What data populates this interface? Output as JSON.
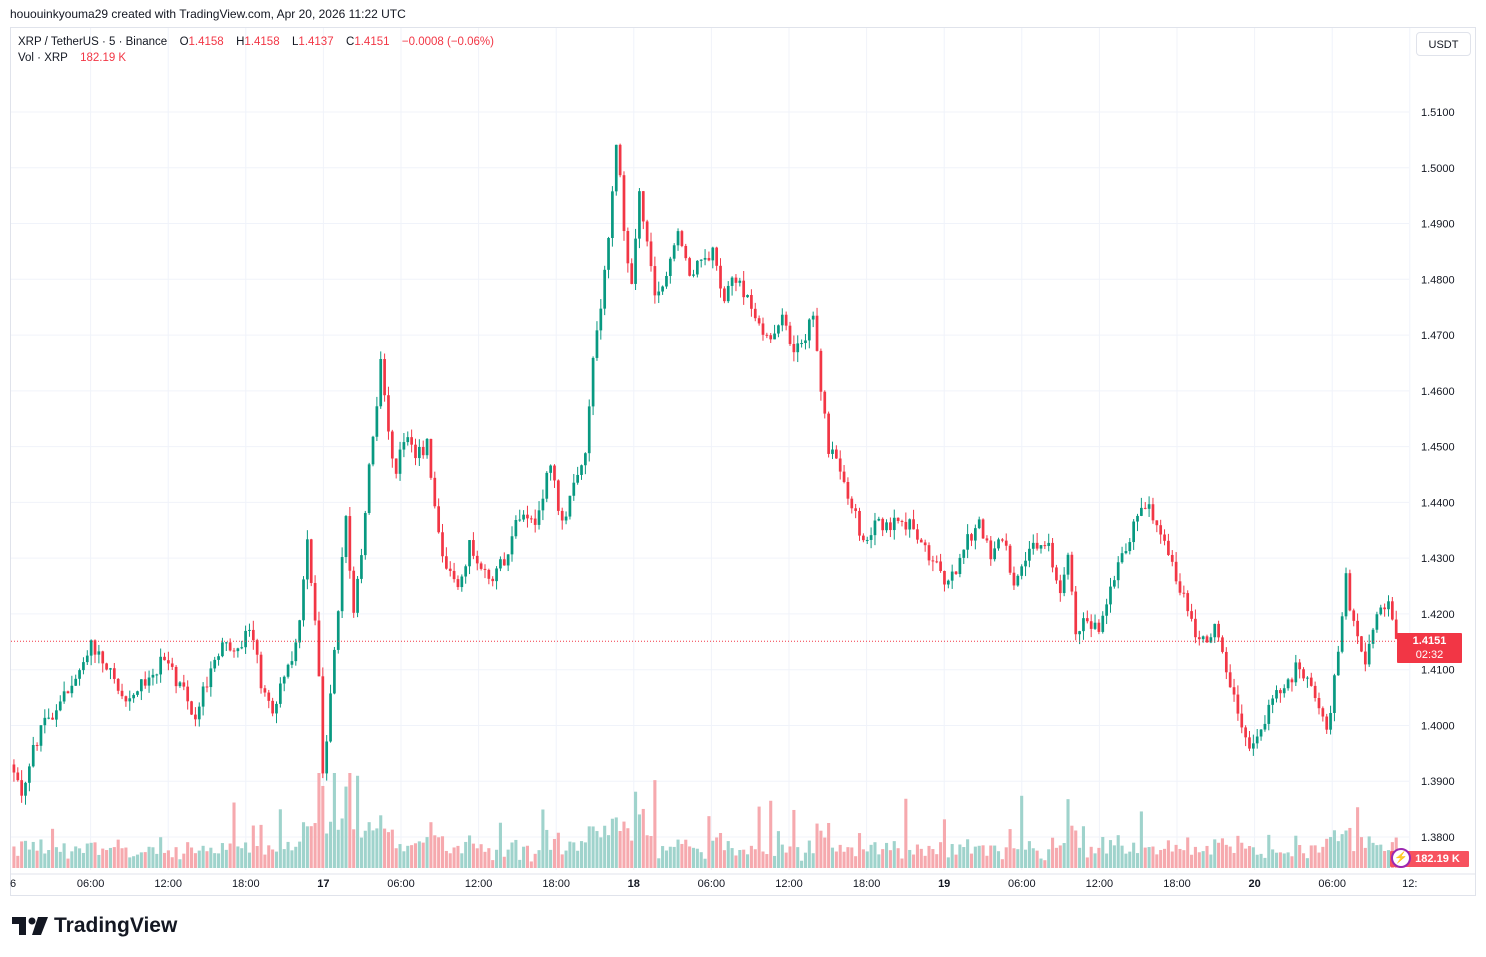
{
  "header": {
    "attribution": "hououinkyouma29 created with TradingView.com, Apr 20, 2026 11:22 UTC"
  },
  "legend": {
    "symbol": "XRP / TetherUS · 5 · Binance",
    "open_label": "O",
    "open": "1.4158",
    "high_label": "H",
    "high": "1.4158",
    "low_label": "L",
    "low": "1.4137",
    "close_label": "C",
    "close": "1.4151",
    "change": "−0.0008 (−0.06%)",
    "vol_label": "Vol · XRP",
    "vol_value": "182.19 K"
  },
  "currency_button": "USDT",
  "price_tag": {
    "price": "1.4151",
    "countdown": "02:32"
  },
  "volume_tag": {
    "value": "182.19 K",
    "icon": "lightning-icon"
  },
  "footer": {
    "brand": "TradingView",
    "logo": "tradingview-logo"
  },
  "colors": {
    "up": "#089981",
    "down": "#f23645",
    "vol_up": "#9fd3cc",
    "vol_down": "#f6a9ae",
    "grid": "#f0f3fa",
    "price_line": "#f23645"
  },
  "chart_data": {
    "type": "candlestick",
    "symbol": "XRP / TetherUS",
    "interval": "5",
    "exchange": "Binance",
    "y_axis": {
      "ticks": [
        "1.5100",
        "1.5000",
        "1.4900",
        "1.4800",
        "1.4700",
        "1.4600",
        "1.4500",
        "1.4400",
        "1.4300",
        "1.4200",
        "1.4100",
        "1.4000",
        "1.3900",
        "1.3800"
      ],
      "range": [
        1.366,
        1.521
      ]
    },
    "x_axis": {
      "ticks": [
        "6",
        "06:00",
        "12:00",
        "18:00",
        "17",
        "06:00",
        "12:00",
        "18:00",
        "18",
        "06:00",
        "12:00",
        "18:00",
        "19",
        "06:00",
        "12:00",
        "18:00",
        "20",
        "06:00",
        "12:"
      ],
      "bold_ticks": [
        "17",
        "18",
        "19",
        "20"
      ]
    },
    "last_price": 1.4151,
    "price_path": [
      [
        0,
        1.393
      ],
      [
        3,
        1.388
      ],
      [
        8,
        1.4
      ],
      [
        13,
        1.404
      ],
      [
        18,
        1.409
      ],
      [
        21,
        1.415
      ],
      [
        25,
        1.41
      ],
      [
        30,
        1.405
      ],
      [
        35,
        1.408
      ],
      [
        40,
        1.412
      ],
      [
        45,
        1.406
      ],
      [
        48,
        1.402
      ],
      [
        52,
        1.41
      ],
      [
        55,
        1.415
      ],
      [
        58,
        1.412
      ],
      [
        62,
        1.418
      ],
      [
        65,
        1.408
      ],
      [
        68,
        1.403
      ],
      [
        72,
        1.41
      ],
      [
        75,
        1.418
      ],
      [
        77,
        1.433
      ],
      [
        79,
        1.42
      ],
      [
        80,
        1.408
      ],
      [
        81,
        1.392
      ],
      [
        83,
        1.405
      ],
      [
        85,
        1.42
      ],
      [
        87,
        1.438
      ],
      [
        89,
        1.42
      ],
      [
        91,
        1.43
      ],
      [
        93,
        1.447
      ],
      [
        95,
        1.458
      ],
      [
        96,
        1.465
      ],
      [
        98,
        1.452
      ],
      [
        100,
        1.445
      ],
      [
        102,
        1.452
      ],
      [
        105,
        1.448
      ],
      [
        108,
        1.45
      ],
      [
        110,
        1.438
      ],
      [
        113,
        1.428
      ],
      [
        116,
        1.425
      ],
      [
        119,
        1.432
      ],
      [
        122,
        1.428
      ],
      [
        125,
        1.426
      ],
      [
        128,
        1.43
      ],
      [
        132,
        1.438
      ],
      [
        136,
        1.436
      ],
      [
        140,
        1.447
      ],
      [
        143,
        1.436
      ],
      [
        146,
        1.444
      ],
      [
        149,
        1.45
      ],
      [
        151,
        1.465
      ],
      [
        153,
        1.475
      ],
      [
        155,
        1.488
      ],
      [
        157,
        1.505
      ],
      [
        159,
        1.49
      ],
      [
        161,
        1.478
      ],
      [
        163,
        1.495
      ],
      [
        165,
        1.487
      ],
      [
        167,
        1.476
      ],
      [
        170,
        1.48
      ],
      [
        173,
        1.49
      ],
      [
        176,
        1.481
      ],
      [
        179,
        1.484
      ],
      [
        182,
        1.485
      ],
      [
        185,
        1.477
      ],
      [
        188,
        1.48
      ],
      [
        191,
        1.477
      ],
      [
        194,
        1.472
      ],
      [
        197,
        1.468
      ],
      [
        200,
        1.473
      ],
      [
        203,
        1.468
      ],
      [
        206,
        1.47
      ],
      [
        208,
        1.474
      ],
      [
        210,
        1.46
      ],
      [
        212,
        1.45
      ],
      [
        215,
        1.446
      ],
      [
        218,
        1.44
      ],
      [
        221,
        1.432
      ],
      [
        224,
        1.437
      ],
      [
        227,
        1.436
      ],
      [
        230,
        1.436
      ],
      [
        233,
        1.436
      ],
      [
        236,
        1.432
      ],
      [
        239,
        1.43
      ],
      [
        242,
        1.426
      ],
      [
        245,
        1.428
      ],
      [
        248,
        1.433
      ],
      [
        251,
        1.436
      ],
      [
        254,
        1.43
      ],
      [
        257,
        1.434
      ],
      [
        260,
        1.426
      ],
      [
        263,
        1.43
      ],
      [
        266,
        1.433
      ],
      [
        269,
        1.432
      ],
      [
        272,
        1.425
      ],
      [
        274,
        1.43
      ],
      [
        276,
        1.417
      ],
      [
        279,
        1.42
      ],
      [
        282,
        1.416
      ],
      [
        285,
        1.425
      ],
      [
        288,
        1.43
      ],
      [
        291,
        1.436
      ],
      [
        294,
        1.44
      ],
      [
        297,
        1.437
      ],
      [
        300,
        1.43
      ],
      [
        303,
        1.425
      ],
      [
        306,
        1.418
      ],
      [
        309,
        1.415
      ],
      [
        312,
        1.418
      ],
      [
        315,
        1.41
      ],
      [
        318,
        1.402
      ],
      [
        321,
        1.396
      ],
      [
        324,
        1.4
      ],
      [
        327,
        1.405
      ],
      [
        330,
        1.407
      ],
      [
        333,
        1.41
      ],
      [
        336,
        1.409
      ],
      [
        339,
        1.404
      ],
      [
        341,
        1.399
      ],
      [
        344,
        1.412
      ],
      [
        346,
        1.426
      ],
      [
        348,
        1.418
      ],
      [
        351,
        1.412
      ],
      [
        354,
        1.42
      ],
      [
        357,
        1.423
      ],
      [
        359,
        1.415
      ]
    ],
    "volume": {
      "unit": "XRP",
      "last": "182.19 K"
    }
  }
}
